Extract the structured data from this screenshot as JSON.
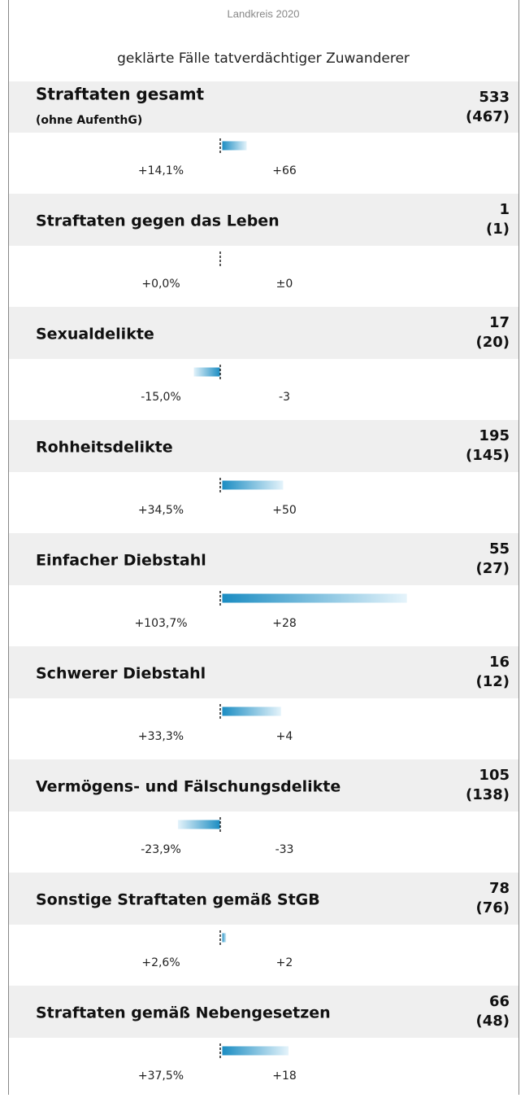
{
  "header": {
    "title": "Landkreis 2020",
    "subtitle": "geklärte Fälle tatverdächtiger Zuwanderer"
  },
  "rows": [
    {
      "name": "Straftaten gesamt",
      "subname": "(ohne AufenthG)",
      "value": "533",
      "previous": "(467)",
      "pct": 14.1,
      "pct_label": "+14,1%",
      "diff": "+66"
    },
    {
      "name": "Straftaten gegen das Leben",
      "value": "1",
      "previous": "(1)",
      "pct": 0.0,
      "pct_label": "+0,0%",
      "diff": "±0"
    },
    {
      "name": "Sexualdelikte",
      "value": "17",
      "previous": "(20)",
      "pct": -15.0,
      "pct_label": "-15,0%",
      "diff": "-3"
    },
    {
      "name": "Rohheitsdelikte",
      "value": "195",
      "previous": "(145)",
      "pct": 34.5,
      "pct_label": "+34,5%",
      "diff": "+50"
    },
    {
      "name": "Einfacher Diebstahl",
      "value": "55",
      "previous": "(27)",
      "pct": 103.7,
      "pct_label": "+103,7%",
      "diff": "+28"
    },
    {
      "name": "Schwerer Diebstahl",
      "value": "16",
      "previous": "(12)",
      "pct": 33.3,
      "pct_label": "+33,3%",
      "diff": "+4"
    },
    {
      "name": "Vermögens- und Fälschungsdelikte",
      "value": "105",
      "previous": "(138)",
      "pct": -23.9,
      "pct_label": "-23,9%",
      "diff": "-33"
    },
    {
      "name": "Sonstige Straftaten gemäß StGB",
      "value": "78",
      "previous": "(76)",
      "pct": 2.6,
      "pct_label": "+2,6%",
      "diff": "+2"
    },
    {
      "name": "Straftaten gemäß Nebengesetzen",
      "value": "66",
      "previous": "(48)",
      "pct": 37.5,
      "pct_label": "+37,5%",
      "diff": "+18"
    }
  ]
}
